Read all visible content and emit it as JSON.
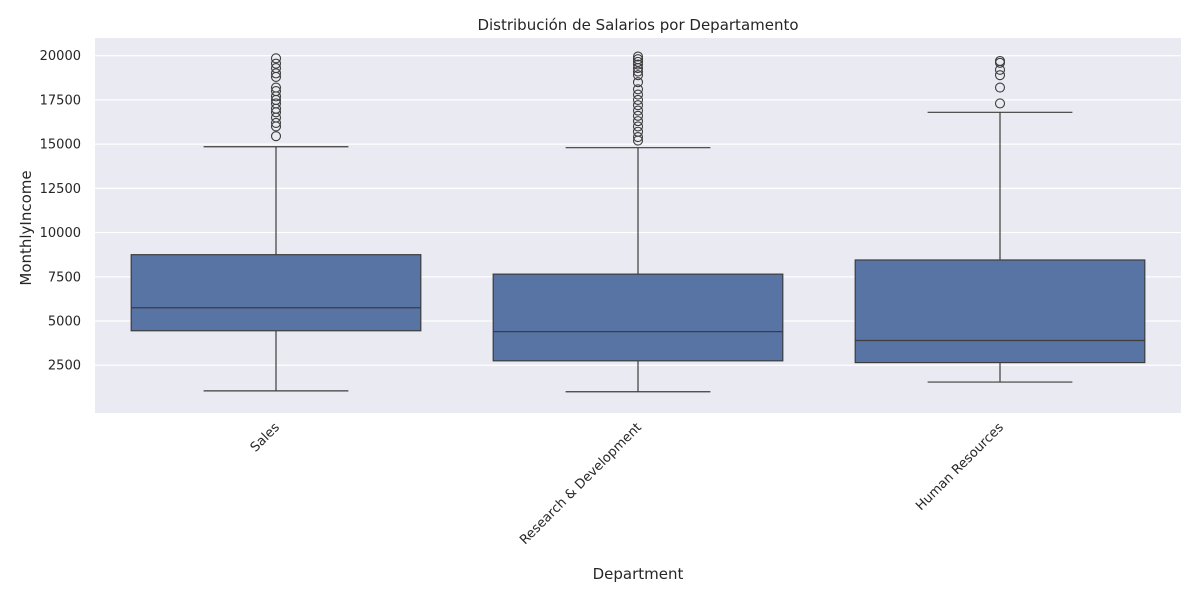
{
  "chart_data": {
    "type": "boxplot",
    "title": "Distribución de Salarios por Departamento",
    "xlabel": "Department",
    "ylabel": "MonthlyIncome",
    "ylim": [
      -200,
      21000
    ],
    "yticks": [
      2500,
      5000,
      7500,
      10000,
      12500,
      15000,
      17500,
      20000
    ],
    "grid": true,
    "box_color": "#5874a5",
    "edge_color": "#3d3d3d",
    "plot_background": "#eaeaf2",
    "grid_color": "#ffffff",
    "categories": [
      "Sales",
      "Research & Development",
      "Human Resources"
    ],
    "boxes": [
      {
        "category": "Sales",
        "whisker_low": 1050,
        "q1": 4450,
        "median": 5750,
        "q3": 8750,
        "whisker_high": 14850,
        "outliers": [
          15450,
          16000,
          16200,
          16500,
          16800,
          17000,
          17300,
          17500,
          17700,
          18000,
          18200,
          18800,
          19000,
          19300,
          19550,
          19850
        ]
      },
      {
        "category": "Research & Development",
        "whisker_low": 1000,
        "q1": 2750,
        "median": 4400,
        "q3": 7650,
        "whisker_high": 14800,
        "outliers": [
          15200,
          15400,
          15700,
          16000,
          16300,
          16600,
          16900,
          17200,
          17500,
          17800,
          18100,
          18500,
          18900,
          19100,
          19300,
          19500,
          19650,
          19800,
          19950
        ]
      },
      {
        "category": "Human Resources",
        "whisker_low": 1550,
        "q1": 2650,
        "median": 3900,
        "q3": 8450,
        "whisker_high": 16800,
        "outliers": [
          17300,
          18200,
          18900,
          19200,
          19600,
          19700
        ]
      }
    ]
  }
}
